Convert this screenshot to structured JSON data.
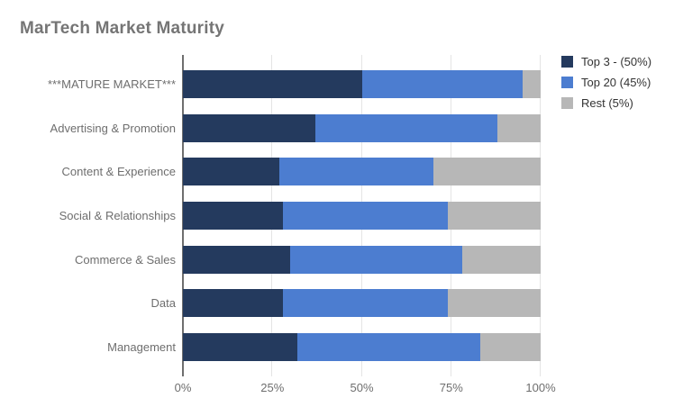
{
  "title": "MarTech Market Maturity",
  "colors": {
    "series_top3": "#243A5E",
    "series_top20": "#4C7DD0",
    "series_rest": "#B7B7B7",
    "title_text": "#757575",
    "axis_text": "#6E6E6E",
    "legend_text": "#333333",
    "gridline": "#E4E4E4",
    "baseline": "#6F6F6F",
    "background": "#FFFFFF"
  },
  "chart_data": {
    "type": "bar",
    "orientation": "horizontal",
    "stacked": true,
    "title": "MarTech Market Maturity",
    "categories": [
      "***MATURE MARKET***",
      "Advertising & Promotion",
      "Content & Experience",
      "Social & Relationships",
      "Commerce & Sales",
      "Data",
      "Management"
    ],
    "series": [
      {
        "name": "Top 3 - (50%)",
        "color": "#243A5E",
        "values": [
          50,
          37,
          27,
          28,
          30,
          28,
          32
        ]
      },
      {
        "name": "Top 20 (45%)",
        "color": "#4C7DD0",
        "values": [
          45,
          51,
          43,
          46,
          48,
          46,
          51
        ]
      },
      {
        "name": "Rest (5%)",
        "color": "#B7B7B7",
        "values": [
          5,
          12,
          30,
          26,
          22,
          26,
          17
        ]
      }
    ],
    "x_ticks": [
      "0%",
      "25%",
      "50%",
      "75%",
      "100%"
    ],
    "xlabel": "",
    "ylabel": "",
    "xlim": [
      0,
      100
    ],
    "grid": true,
    "legend_position": "right"
  }
}
